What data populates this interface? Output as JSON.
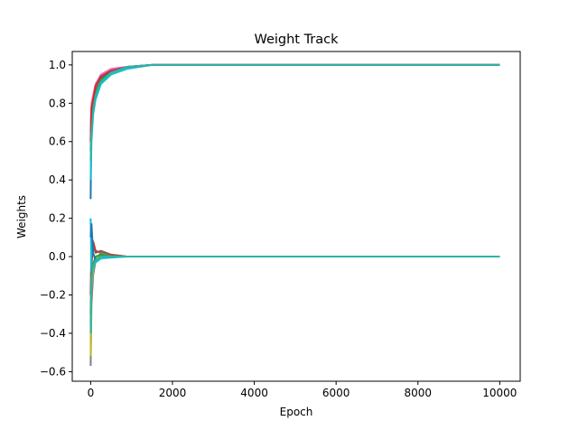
{
  "chart_data": {
    "type": "line",
    "title": "Weight Track",
    "xlabel": "Epoch",
    "ylabel": "Weights",
    "xlim": [
      -450,
      10500
    ],
    "ylim": [
      -0.65,
      1.07
    ],
    "xticks": [
      0,
      2000,
      4000,
      6000,
      8000,
      10000
    ],
    "xtick_labels": [
      "0",
      "2000",
      "4000",
      "6000",
      "8000",
      "10000"
    ],
    "yticks": [
      -0.6,
      -0.4,
      -0.2,
      0.0,
      0.2,
      0.4,
      0.6,
      0.8,
      1.0
    ],
    "ytick_labels": [
      "−0.6",
      "−0.4",
      "−0.2",
      "0.0",
      "0.2",
      "0.4",
      "0.6",
      "0.8",
      "1.0"
    ],
    "grid": false,
    "legend": "none",
    "series": [
      {
        "color": "#1f77b4",
        "x": [
          0,
          20,
          60,
          120,
          250,
          500,
          900,
          1500,
          10000
        ],
        "y": [
          0.3,
          0.76,
          0.8,
          0.87,
          0.93,
          0.97,
          0.99,
          1.0,
          1.0
        ]
      },
      {
        "color": "#ff7f0e",
        "x": [
          0,
          20,
          60,
          120,
          250,
          500,
          900,
          1500,
          10000
        ],
        "y": [
          -0.45,
          -0.18,
          -0.08,
          -0.03,
          0.01,
          0.0,
          0.0,
          0.0,
          0.0
        ]
      },
      {
        "color": "#2ca02c",
        "x": [
          0,
          20,
          60,
          120,
          250,
          500,
          900,
          1500,
          10000
        ],
        "y": [
          0.55,
          0.72,
          0.79,
          0.86,
          0.92,
          0.96,
          0.99,
          1.0,
          1.0
        ]
      },
      {
        "color": "#d62728",
        "x": [
          0,
          20,
          60,
          120,
          250,
          500,
          900,
          1500,
          10000
        ],
        "y": [
          -0.2,
          0.05,
          0.08,
          0.03,
          0.02,
          0.01,
          0.0,
          0.0,
          0.0
        ]
      },
      {
        "color": "#9467bd",
        "x": [
          0,
          20,
          60,
          120,
          250,
          500,
          900,
          1500,
          10000
        ],
        "y": [
          0.65,
          0.78,
          0.83,
          0.88,
          0.94,
          0.97,
          0.99,
          1.0,
          1.0
        ]
      },
      {
        "color": "#8c564b",
        "x": [
          0,
          20,
          60,
          120,
          250,
          500,
          900,
          1500,
          10000
        ],
        "y": [
          -0.3,
          -0.05,
          0.06,
          0.02,
          0.03,
          0.01,
          0.0,
          0.0,
          0.0
        ]
      },
      {
        "color": "#e377c2",
        "x": [
          0,
          20,
          60,
          120,
          250,
          500,
          900,
          1500,
          10000
        ],
        "y": [
          0.7,
          0.8,
          0.84,
          0.9,
          0.95,
          0.98,
          0.99,
          1.0,
          1.0
        ]
      },
      {
        "color": "#7f7f7f",
        "x": [
          0,
          20,
          60,
          120,
          250,
          500,
          900,
          1500,
          10000
        ],
        "y": [
          -0.57,
          -0.25,
          -0.1,
          -0.02,
          0.02,
          0.0,
          0.0,
          0.0,
          0.0
        ]
      },
      {
        "color": "#bcbd22",
        "x": [
          0,
          20,
          60,
          120,
          250,
          500,
          900,
          1500,
          10000
        ],
        "y": [
          -0.52,
          -0.15,
          -0.07,
          -0.01,
          0.01,
          0.0,
          0.0,
          0.0,
          0.0
        ]
      },
      {
        "color": "#17becf",
        "x": [
          0,
          20,
          60,
          120,
          250,
          500,
          900,
          1500,
          10000
        ],
        "y": [
          0.4,
          0.6,
          0.74,
          0.82,
          0.9,
          0.95,
          0.98,
          1.0,
          1.0
        ]
      },
      {
        "color": "#17becf",
        "x": [
          0,
          20,
          60,
          120,
          250,
          500,
          900,
          1500,
          10000
        ],
        "y": [
          0.2,
          -0.08,
          -0.06,
          -0.03,
          -0.01,
          -0.005,
          0.0,
          0.0,
          0.0
        ]
      },
      {
        "color": "#2ca02c",
        "x": [
          0,
          20,
          60,
          120,
          250,
          500,
          900,
          1500,
          10000
        ],
        "y": [
          -0.35,
          -0.1,
          -0.04,
          0.0,
          0.01,
          0.0,
          0.0,
          0.0,
          0.0
        ]
      },
      {
        "color": "#1f77b4",
        "x": [
          0,
          20,
          60,
          120,
          250,
          500,
          900,
          1500,
          10000
        ],
        "y": [
          0.1,
          0.17,
          0.02,
          -0.02,
          0.0,
          0.0,
          0.0,
          0.0,
          0.0
        ]
      },
      {
        "color": "#d62728",
        "x": [
          0,
          20,
          60,
          120,
          250,
          500,
          900,
          1500,
          10000
        ],
        "y": [
          0.6,
          0.77,
          0.82,
          0.89,
          0.94,
          0.97,
          0.99,
          1.0,
          1.0
        ]
      },
      {
        "color": "#2ab5a8",
        "x": [
          0,
          20,
          60,
          120,
          250,
          500,
          900,
          1500,
          10000
        ],
        "y": [
          0.5,
          0.64,
          0.76,
          0.84,
          0.91,
          0.96,
          0.99,
          1.0,
          1.0
        ]
      },
      {
        "color": "#2ab5a8",
        "x": [
          0,
          20,
          60,
          120,
          250,
          500,
          900,
          1500,
          10000
        ],
        "y": [
          -0.4,
          -0.12,
          -0.05,
          -0.02,
          0.0,
          0.0,
          0.0,
          0.0,
          0.0
        ]
      }
    ]
  }
}
